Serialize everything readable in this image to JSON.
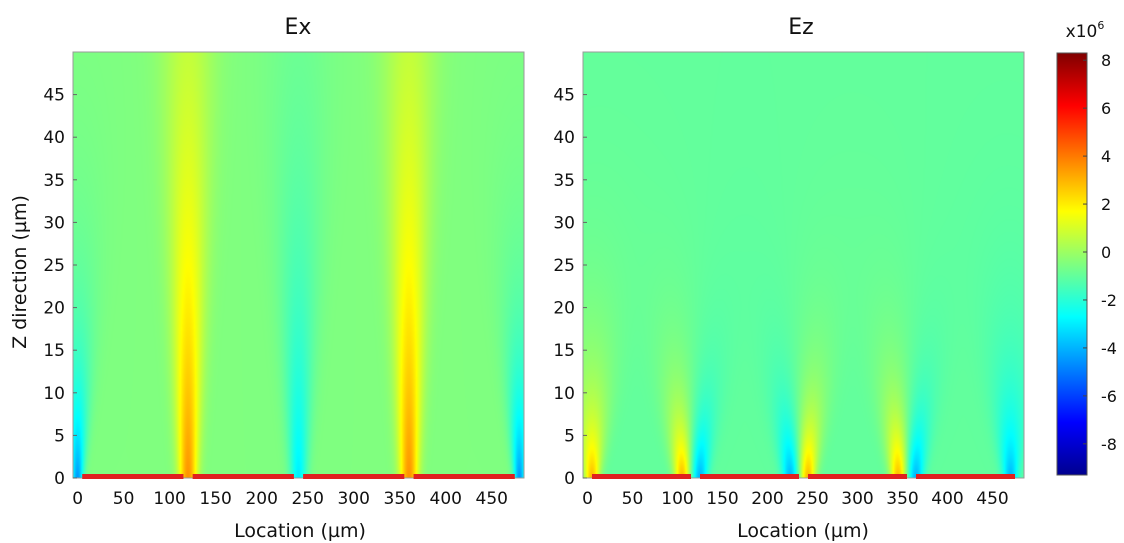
{
  "chart_data": [
    {
      "type": "heatmap",
      "title": "Ex",
      "xlabel": "Location (µm)",
      "ylabel": "Z direction (µm)",
      "xlim": [
        -5,
        485
      ],
      "ylim": [
        0,
        50
      ],
      "xticks": [
        0,
        50,
        100,
        150,
        200,
        250,
        300,
        350,
        400,
        450
      ],
      "yticks": [
        0,
        5,
        10,
        15,
        20,
        25,
        30,
        35,
        40,
        45
      ],
      "base_value": -0.5,
      "features": [
        {
          "x": 120,
          "value": 3.6,
          "halfwidth": 10,
          "height": 40
        },
        {
          "x": 360,
          "value": 3.6,
          "halfwidth": 10,
          "height": 40
        },
        {
          "x": 0,
          "value": -4.5,
          "halfwidth": 6,
          "height": 12
        },
        {
          "x": 240,
          "value": -3.0,
          "halfwidth": 9,
          "height": 25
        },
        {
          "x": 480,
          "value": -4.5,
          "halfwidth": 6,
          "height": 12
        }
      ],
      "electrodes": [
        [
          5,
          115
        ],
        [
          125,
          235
        ],
        [
          245,
          355
        ],
        [
          365,
          475
        ]
      ]
    },
    {
      "type": "heatmap",
      "title": "Ez",
      "xlabel": "Location (µm)",
      "ylabel": "",
      "xlim": [
        -5,
        485
      ],
      "ylim": [
        0,
        50
      ],
      "xticks": [
        0,
        50,
        100,
        150,
        200,
        250,
        300,
        350,
        400,
        450
      ],
      "yticks": [
        0,
        5,
        10,
        15,
        20,
        25,
        30,
        35,
        40,
        45
      ],
      "base_value": -1.0,
      "features": [
        {
          "x": 5,
          "value": 3.0,
          "halfwidth": 8,
          "height": 9
        },
        {
          "x": 105,
          "value": 3.0,
          "halfwidth": 8,
          "height": 9
        },
        {
          "x": 245,
          "value": 3.0,
          "halfwidth": 8,
          "height": 9
        },
        {
          "x": 345,
          "value": 3.0,
          "halfwidth": 8,
          "height": 9
        },
        {
          "x": 125,
          "value": -4.0,
          "halfwidth": 8,
          "height": 9
        },
        {
          "x": 225,
          "value": -4.0,
          "halfwidth": 8,
          "height": 9
        },
        {
          "x": 365,
          "value": -4.0,
          "halfwidth": 8,
          "height": 9
        },
        {
          "x": 470,
          "value": -4.0,
          "halfwidth": 8,
          "height": 9
        }
      ],
      "electrodes": [
        [
          5,
          115
        ],
        [
          125,
          235
        ],
        [
          245,
          355
        ],
        [
          365,
          475
        ]
      ]
    }
  ],
  "colorbar": {
    "multiplier_base": "x10",
    "multiplier_exp": "6",
    "min": -9.3,
    "max": 8.3,
    "ticks": [
      8,
      6,
      4,
      2,
      0,
      -2,
      -4,
      -6,
      -8
    ]
  },
  "colors": {
    "electrode": "#e02020",
    "frame": "#9a9a9a"
  }
}
